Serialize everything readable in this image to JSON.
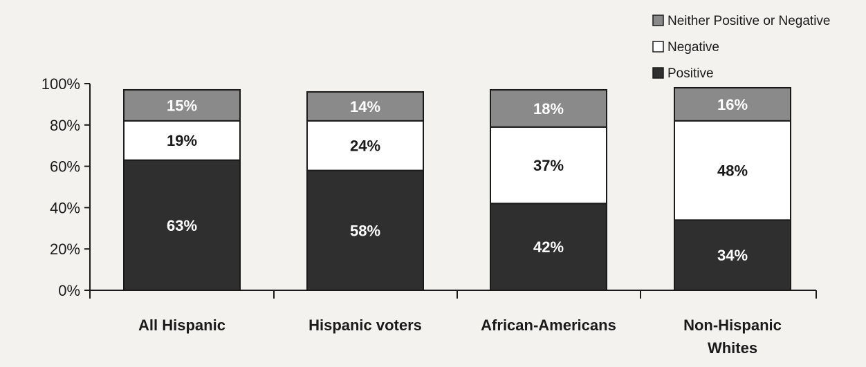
{
  "chart_data": {
    "type": "bar",
    "stacked": true,
    "categories": [
      [
        "All Hispanic"
      ],
      [
        "Hispanic voters"
      ],
      [
        "African-Americans"
      ],
      [
        "Non-Hispanic",
        "Whites"
      ]
    ],
    "series": [
      {
        "name": "Positive",
        "values": [
          63,
          58,
          42,
          34
        ],
        "labels": [
          "63%",
          "58%",
          "42%",
          "34%"
        ],
        "color": "#2f2f2f",
        "label_color": "#ffffff"
      },
      {
        "name": "Negative",
        "values": [
          19,
          24,
          37,
          48
        ],
        "labels": [
          "19%",
          "24%",
          "37%",
          "48%"
        ],
        "color": "#ffffff",
        "label_color": "#1a1a1a"
      },
      {
        "name": "Neither Positive or Negative",
        "values": [
          15,
          14,
          18,
          16
        ],
        "labels": [
          "15%",
          "14%",
          "18%",
          "16%"
        ],
        "color": "#8a8a8a",
        "label_color": "#ffffff"
      }
    ],
    "legend_order": [
      "Neither Positive or Negative",
      "Negative",
      "Positive"
    ],
    "legend_position": "top-right",
    "ylim": [
      0,
      100
    ],
    "yticks": [
      0,
      20,
      40,
      60,
      80,
      100
    ],
    "ytick_labels": [
      "0%",
      "20%",
      "40%",
      "60%",
      "80%",
      "100%"
    ],
    "grid": false
  }
}
